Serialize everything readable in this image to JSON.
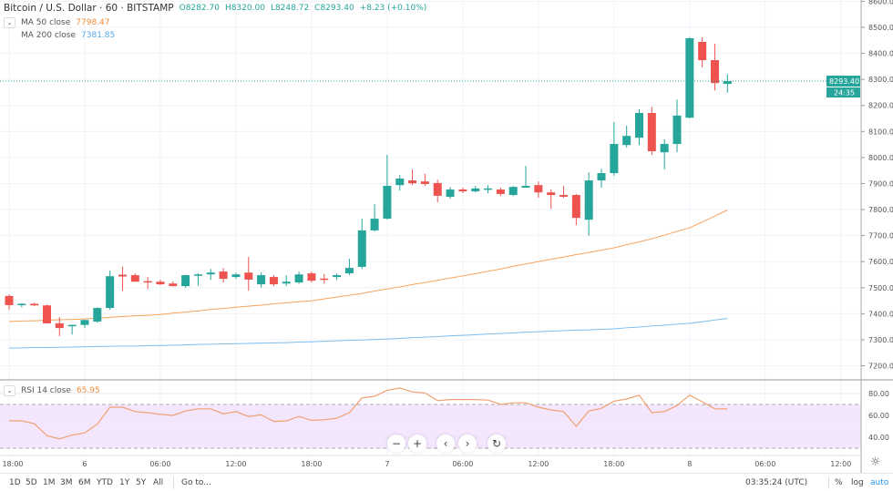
{
  "header": {
    "symbol_title": "Bitcoin / U.S. Dollar · 60 · BITSTAMP",
    "open": "O8282.70",
    "high": "H8320.00",
    "low": "L8248.72",
    "close": "C8293.40",
    "change": "+8.23 (+0.10%)"
  },
  "indicators": {
    "ma50_label": "MA 50 close",
    "ma50_value": "7798.47",
    "ma200_label": "MA 200 close",
    "ma200_value": "7381.85",
    "rsi_label": "RSI 14 close",
    "rsi_value": "65.95"
  },
  "price_label": "8293.40",
  "countdown": "24:35",
  "nav_buttons": [
    {
      "name": "zoom-out-button",
      "icon": "minus-icon",
      "glyph": "−"
    },
    {
      "name": "zoom-in-button",
      "icon": "plus-icon",
      "glyph": "+"
    },
    {
      "name": "scroll-left-button",
      "icon": "chevron-left-icon",
      "glyph": "‹"
    },
    {
      "name": "scroll-right-button",
      "icon": "chevron-right-icon",
      "glyph": "›"
    },
    {
      "name": "reset-button",
      "icon": "reset-icon",
      "glyph": "↻"
    }
  ],
  "bottombar": {
    "ranges": [
      "1D",
      "5D",
      "1M",
      "3M",
      "6M",
      "YTD",
      "1Y",
      "5Y",
      "All"
    ],
    "goto": "Go to...",
    "clock": "03:35:24 (UTC)",
    "percent": "%",
    "log": "log",
    "auto": "auto"
  },
  "colors": {
    "up": "#26a69a",
    "down": "#ef5350",
    "ma50": "#f7a35c",
    "ma200": "#7cbdf0",
    "rsi": "#f0a070",
    "rsi_band": "#f3e6fd",
    "accent": "#2196f3"
  },
  "chart_data": {
    "type": "candlestick",
    "interval": "60",
    "ylim": [
      7130,
      8610
    ],
    "yticks": [
      7200,
      7300,
      7400,
      7500,
      7600,
      7700,
      7800,
      7900,
      8000,
      8100,
      8200,
      8300,
      8400,
      8500,
      8600
    ],
    "ytick_labels": [
      "7200.00",
      "7300.00",
      "7400.00",
      "7500.00",
      "7600.00",
      "7700.00",
      "7800.00",
      "7900.00",
      "8000.00",
      "8100.00",
      "8200.00",
      "8300.00",
      "8400.00",
      "8500.00",
      "8600.00"
    ],
    "xtick_labels": [
      {
        "hour": 0,
        "label": "18:00"
      },
      {
        "hour": 6,
        "label": "6"
      },
      {
        "hour": 12,
        "label": "06:00"
      },
      {
        "hour": 18,
        "label": "12:00"
      },
      {
        "hour": 24,
        "label": "18:00"
      },
      {
        "hour": 30,
        "label": "7"
      },
      {
        "hour": 36,
        "label": "06:00"
      },
      {
        "hour": 42,
        "label": "12:00"
      },
      {
        "hour": 48,
        "label": "18:00"
      },
      {
        "hour": 54,
        "label": "8"
      },
      {
        "hour": 60,
        "label": "06:00"
      },
      {
        "hour": 66,
        "label": "12:00"
      }
    ],
    "ohlc": [
      [
        7468,
        7475,
        7415,
        7433
      ],
      [
        7433,
        7440,
        7425,
        7438
      ],
      [
        7438,
        7442,
        7430,
        7432
      ],
      [
        7432,
        7435,
        7362,
        7363
      ],
      [
        7363,
        7387,
        7314,
        7345
      ],
      [
        7352,
        7358,
        7320,
        7357
      ],
      [
        7357,
        7376,
        7345,
        7376
      ],
      [
        7370,
        7425,
        7365,
        7422
      ],
      [
        7422,
        7566,
        7415,
        7544
      ],
      [
        7550,
        7580,
        7488,
        7543
      ],
      [
        7548,
        7555,
        7523,
        7523
      ],
      [
        7525,
        7541,
        7495,
        7520
      ],
      [
        7523,
        7530,
        7510,
        7513
      ],
      [
        7516,
        7525,
        7505,
        7506
      ],
      [
        7506,
        7550,
        7500,
        7548
      ],
      [
        7548,
        7555,
        7508,
        7551
      ],
      [
        7551,
        7572,
        7530,
        7558
      ],
      [
        7562,
        7576,
        7520,
        7534
      ],
      [
        7541,
        7558,
        7534,
        7551
      ],
      [
        7558,
        7618,
        7488,
        7531
      ],
      [
        7513,
        7558,
        7500,
        7548
      ],
      [
        7541,
        7548,
        7506,
        7513
      ],
      [
        7516,
        7548,
        7506,
        7523
      ],
      [
        7520,
        7562,
        7515,
        7551
      ],
      [
        7555,
        7562,
        7520,
        7527
      ],
      [
        7535,
        7552,
        7515,
        7530
      ],
      [
        7541,
        7555,
        7530,
        7548
      ],
      [
        7555,
        7611,
        7548,
        7576
      ],
      [
        7580,
        7765,
        7572,
        7720
      ],
      [
        7720,
        7821,
        7716,
        7765
      ],
      [
        7765,
        8010,
        7762,
        7891
      ],
      [
        7894,
        7933,
        7873,
        7919
      ],
      [
        7912,
        7954,
        7894,
        7901
      ],
      [
        7908,
        7937,
        7891,
        7898
      ],
      [
        7902,
        7915,
        7828,
        7853
      ],
      [
        7849,
        7887,
        7842,
        7877
      ],
      [
        7877,
        7884,
        7863,
        7870
      ],
      [
        7870,
        7891,
        7866,
        7881
      ],
      [
        7876,
        7894,
        7863,
        7881
      ],
      [
        7877,
        7884,
        7852,
        7860
      ],
      [
        7856,
        7890,
        7852,
        7887
      ],
      [
        7884,
        7968,
        7884,
        7891
      ],
      [
        7894,
        7908,
        7845,
        7866
      ],
      [
        7866,
        7877,
        7803,
        7856
      ],
      [
        7856,
        7891,
        7845,
        7849
      ],
      [
        7856,
        7860,
        7740,
        7768
      ],
      [
        7761,
        7943,
        7699,
        7912
      ],
      [
        7912,
        7957,
        7884,
        7940
      ],
      [
        7940,
        8136,
        7930,
        8052
      ],
      [
        8048,
        8122,
        8038,
        8083
      ],
      [
        8076,
        8185,
        8048,
        8171
      ],
      [
        8171,
        8195,
        8010,
        8024
      ],
      [
        8020,
        8070,
        7954,
        8052
      ],
      [
        8052,
        8223,
        8020,
        8161
      ],
      [
        8153,
        8462,
        8150,
        8458
      ],
      [
        8444,
        8462,
        8346,
        8374
      ],
      [
        8374,
        8437,
        8258,
        8286
      ],
      [
        8282.7,
        8320.0,
        8248.72,
        8293.4
      ]
    ],
    "ma50": [
      7370,
      7372,
      7373,
      7375,
      7377,
      7378,
      7380,
      7383,
      7386,
      7389,
      7392,
      7394,
      7397,
      7402,
      7406,
      7411,
      7416,
      7420,
      7425,
      7429,
      7433,
      7438,
      7442,
      7446,
      7450,
      7457,
      7464,
      7471,
      7478,
      7487,
      7495,
      7503,
      7512,
      7520,
      7528,
      7537,
      7545,
      7554,
      7563,
      7572,
      7582,
      7591,
      7600,
      7609,
      7618,
      7627,
      7635,
      7644,
      7653,
      7665,
      7676,
      7688,
      7702,
      7716,
      7730,
      7752,
      7775,
      7798.47
    ],
    "ma200": [
      7268,
      7269,
      7270,
      7270,
      7271,
      7272,
      7273,
      7274,
      7275,
      7276,
      7276,
      7277,
      7278,
      7279,
      7280,
      7282,
      7283,
      7284,
      7285,
      7286,
      7287,
      7288,
      7289,
      7291,
      7292,
      7294,
      7296,
      7298,
      7299,
      7301,
      7303,
      7305,
      7308,
      7310,
      7312,
      7315,
      7317,
      7319,
      7322,
      7324,
      7326,
      7329,
      7331,
      7333,
      7335,
      7337,
      7338,
      7340,
      7342,
      7346,
      7349,
      7353,
      7356,
      7360,
      7363,
      7369,
      7376,
      7381.85
    ],
    "rsi": {
      "ylim": [
        20,
        90
      ],
      "band": [
        30,
        70
      ],
      "yticks": [
        40,
        60,
        80
      ],
      "ytick_labels": [
        "40.00",
        "60.00",
        "80.00"
      ],
      "values": [
        55,
        55,
        52.5,
        41.5,
        38.5,
        42,
        44,
        52,
        67.5,
        67.5,
        63.5,
        62.5,
        61,
        60,
        64,
        66,
        66,
        61.5,
        63.5,
        59,
        60.5,
        54.5,
        55,
        59,
        55.5,
        56,
        57.5,
        62.5,
        76,
        77.5,
        83,
        85,
        81.5,
        80.5,
        73.5,
        74.5,
        74.5,
        74.5,
        74,
        70,
        71.5,
        71.5,
        67.5,
        65,
        63.5,
        50,
        64,
        66.5,
        73,
        75,
        78.5,
        62.5,
        63.5,
        69,
        78.5,
        72.5,
        66,
        65.95
      ]
    },
    "last_price": 8293.4
  }
}
